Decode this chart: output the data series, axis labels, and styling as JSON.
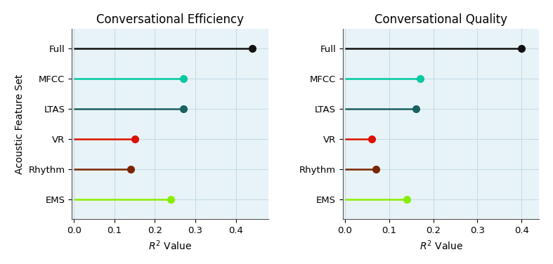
{
  "categories": [
    "EMS",
    "Rhythm",
    "VR",
    "LTAS",
    "MFCC",
    "Full"
  ],
  "efficiency_values": [
    0.24,
    0.14,
    0.15,
    0.27,
    0.27,
    0.44
  ],
  "quality_values": [
    0.14,
    0.07,
    0.06,
    0.16,
    0.17,
    0.4
  ],
  "colors": [
    "#88ee00",
    "#7a2500",
    "#dd1100",
    "#1a6060",
    "#00c8a0",
    "#111111"
  ],
  "title_efficiency": "Conversational Efficiency",
  "title_quality": "Conversational Quality",
  "xlabel": "$R^2$ Value",
  "ylabel": "Acoustic Feature Set",
  "xlim_efficiency": [
    -0.005,
    0.48
  ],
  "xlim_quality": [
    -0.005,
    0.44
  ],
  "xticks_efficiency": [
    0.0,
    0.1,
    0.2,
    0.3,
    0.4
  ],
  "xticks_quality": [
    0.0,
    0.1,
    0.2,
    0.3,
    0.4
  ],
  "grid_color": "#c5dde5",
  "background_color": "#e8f3f8",
  "linewidth": 1.8,
  "markersize": 7,
  "title_fontsize": 12,
  "label_fontsize": 10,
  "tick_fontsize": 9.5
}
